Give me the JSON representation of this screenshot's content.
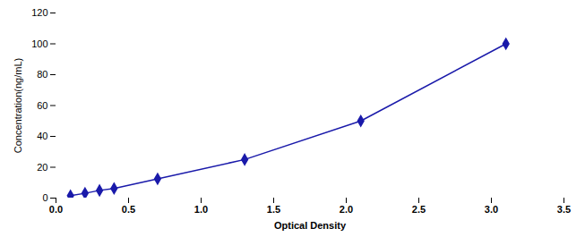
{
  "chart_data": {
    "type": "line",
    "x": [
      0.1,
      0.2,
      0.3,
      0.4,
      0.7,
      1.3,
      2.1,
      3.1
    ],
    "values": [
      1.56,
      3.12,
      5.0,
      6.25,
      12.5,
      25.0,
      50.0,
      100.0
    ],
    "color": "#1a1aaa",
    "marker": "diamond",
    "xlabel": "Optical Density",
    "ylabel": "Concentration(ng/mL)",
    "xlim": [
      0,
      3.5
    ],
    "ylim": [
      0,
      120
    ],
    "xticks": [
      {
        "value": 0,
        "label": "0.0"
      },
      0.5,
      {
        "value": 1.0,
        "label": "1.0"
      },
      1.5,
      {
        "value": 2.0,
        "label": "2.0"
      },
      2.5,
      {
        "value": 3.0,
        "label": "3.0"
      },
      3.5
    ],
    "yticks": [
      0,
      20,
      40,
      60,
      80,
      100,
      120
    ],
    "grid": false
  }
}
